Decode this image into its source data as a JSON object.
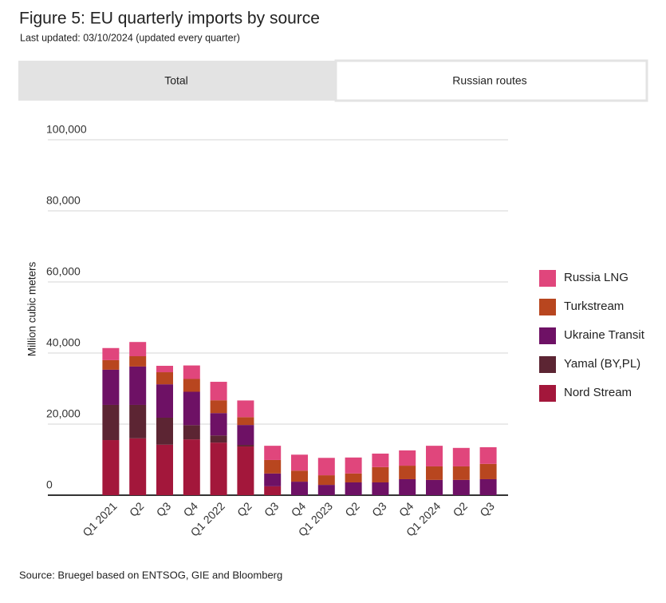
{
  "tabs": [
    "Total",
    "Russian routes"
  ],
  "source": "Source: Bruegel based on ENTSOG, GIE and Bloomberg",
  "chart_data": {
    "type": "stacked-bar",
    "title": "Figure 5: EU quarterly imports by source",
    "subtitle": "Last updated: 03/10/2024 (updated every quarter)",
    "y_label": "Million cubic meters",
    "categories": [
      "Q1 2021",
      "Q2",
      "Q3",
      "Q4",
      "Q1 2022",
      "Q2",
      "Q3",
      "Q4",
      "Q1 2023",
      "Q2",
      "Q3",
      "Q4",
      "Q1 2024",
      "Q2",
      "Q3"
    ],
    "series": [
      {
        "name": "Nord Stream",
        "color": "#a3173b",
        "values": [
          15500,
          16000,
          14200,
          15700,
          14800,
          13700,
          2500,
          0,
          0,
          0,
          0,
          0,
          0,
          0,
          0
        ]
      },
      {
        "name": "Yamal (BY,PL)",
        "color": "#5c2533",
        "values": [
          9900,
          9400,
          7600,
          4000,
          2000,
          450,
          0,
          0,
          0,
          0,
          0,
          0,
          0,
          0,
          0
        ]
      },
      {
        "name": "Ukraine Transit",
        "color": "#6e1165",
        "values": [
          9900,
          10800,
          9400,
          9400,
          6300,
          5600,
          3600,
          3800,
          2900,
          3600,
          3600,
          4500,
          4300,
          4300,
          4500
        ]
      },
      {
        "name": "Turkstream",
        "color": "#b8461f",
        "values": [
          2700,
          2900,
          3400,
          3600,
          3600,
          2200,
          3800,
          3100,
          2700,
          2500,
          4300,
          3800,
          3800,
          3800,
          4300
        ]
      },
      {
        "name": "Russia LNG",
        "color": "#e0467c",
        "values": [
          3400,
          4000,
          1800,
          3800,
          5200,
          4700,
          4000,
          4500,
          4900,
          4500,
          3800,
          4300,
          5800,
          5200,
          4700
        ]
      }
    ],
    "ylim": [
      0,
      100000
    ],
    "yticks": [
      0,
      {
        "value": 20000,
        "label": "20,000"
      },
      {
        "value": 40000,
        "label": "40,000"
      },
      {
        "value": 60000,
        "label": "60,000"
      },
      {
        "value": 80000,
        "label": "80,000"
      },
      {
        "value": 100000,
        "label": "100,000"
      }
    ],
    "grid": true,
    "legend": "right"
  }
}
